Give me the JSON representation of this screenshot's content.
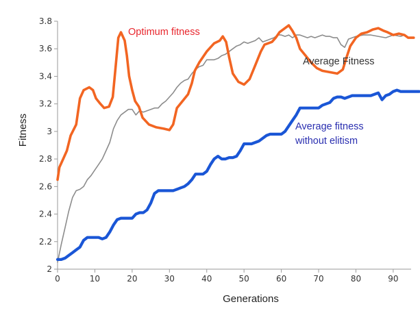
{
  "chart_data": {
    "type": "line",
    "xlabel": "Generations",
    "ylabel": "Fitness",
    "xlim": [
      0,
      97
    ],
    "ylim": [
      2,
      3.8
    ],
    "xticks": [
      0,
      10,
      20,
      30,
      40,
      50,
      60,
      70,
      80,
      90
    ],
    "xtick_labels": [
      "0",
      "10",
      "20",
      "30",
      "40",
      "50",
      "60",
      "70",
      "80",
      "90"
    ],
    "yticks": [
      2,
      2.2,
      2.4,
      2.6,
      2.8,
      3,
      3.2,
      3.4,
      3.6,
      3.8
    ],
    "ytick_labels": [
      "2",
      "2.2",
      "2.4",
      "2.6",
      "2.8",
      "3",
      "3.2",
      "3.4",
      "3.6",
      "3.8"
    ],
    "grid": false,
    "series": [
      {
        "name": "Optimum fitness",
        "color": "#f26522",
        "label_color": "#e8262d",
        "points": [
          [
            0,
            2.65
          ],
          [
            0.5,
            2.74
          ],
          [
            1.5,
            2.8
          ],
          [
            2.5,
            2.86
          ],
          [
            3.5,
            2.97
          ],
          [
            5,
            3.05
          ],
          [
            6,
            3.24
          ],
          [
            7,
            3.3
          ],
          [
            8.5,
            3.32
          ],
          [
            9.5,
            3.3
          ],
          [
            10.3,
            3.24
          ],
          [
            11.5,
            3.2
          ],
          [
            12.5,
            3.17
          ],
          [
            13.8,
            3.18
          ],
          [
            14.8,
            3.25
          ],
          [
            15.5,
            3.45
          ],
          [
            16.3,
            3.68
          ],
          [
            17,
            3.72
          ],
          [
            18,
            3.66
          ],
          [
            18.6,
            3.55
          ],
          [
            19.2,
            3.4
          ],
          [
            20,
            3.3
          ],
          [
            20.8,
            3.22
          ],
          [
            21.8,
            3.18
          ],
          [
            22.8,
            3.1
          ],
          [
            24.5,
            3.05
          ],
          [
            26.5,
            3.03
          ],
          [
            28.5,
            3.02
          ],
          [
            30,
            3.01
          ],
          [
            31,
            3.05
          ],
          [
            32,
            3.17
          ],
          [
            33.5,
            3.22
          ],
          [
            35,
            3.27
          ],
          [
            36,
            3.35
          ],
          [
            36.8,
            3.44
          ],
          [
            38,
            3.5
          ],
          [
            40,
            3.58
          ],
          [
            42,
            3.64
          ],
          [
            43.5,
            3.66
          ],
          [
            44.3,
            3.69
          ],
          [
            45.2,
            3.65
          ],
          [
            46,
            3.54
          ],
          [
            47,
            3.42
          ],
          [
            48.5,
            3.36
          ],
          [
            50,
            3.34
          ],
          [
            51.5,
            3.38
          ],
          [
            53,
            3.48
          ],
          [
            54.5,
            3.58
          ],
          [
            55.5,
            3.63
          ],
          [
            56.5,
            3.64
          ],
          [
            57.5,
            3.65
          ],
          [
            58.5,
            3.68
          ],
          [
            59.5,
            3.72
          ],
          [
            61,
            3.75
          ],
          [
            62,
            3.77
          ],
          [
            63,
            3.73
          ],
          [
            64,
            3.68
          ],
          [
            65,
            3.6
          ],
          [
            66.5,
            3.55
          ],
          [
            68,
            3.5
          ],
          [
            69.5,
            3.46
          ],
          [
            71,
            3.44
          ],
          [
            73,
            3.43
          ],
          [
            75,
            3.42
          ],
          [
            76.5,
            3.45
          ],
          [
            77.5,
            3.54
          ],
          [
            78.5,
            3.62
          ],
          [
            80,
            3.68
          ],
          [
            81.5,
            3.71
          ],
          [
            83,
            3.72
          ],
          [
            84.5,
            3.74
          ],
          [
            86,
            3.75
          ],
          [
            87.5,
            3.73
          ],
          [
            88.5,
            3.72
          ],
          [
            90,
            3.7
          ],
          [
            91.5,
            3.71
          ],
          [
            93,
            3.7
          ],
          [
            94,
            3.68
          ],
          [
            95.5,
            3.68
          ]
        ]
      },
      {
        "name": "Average Fitness",
        "color": "#8c8c8c",
        "label_color": "#333333",
        "points": [
          [
            0,
            2.05
          ],
          [
            1,
            2.18
          ],
          [
            2,
            2.3
          ],
          [
            3,
            2.42
          ],
          [
            4,
            2.52
          ],
          [
            5,
            2.57
          ],
          [
            6,
            2.58
          ],
          [
            7,
            2.6
          ],
          [
            8,
            2.65
          ],
          [
            9,
            2.68
          ],
          [
            10,
            2.72
          ],
          [
            11,
            2.76
          ],
          [
            12,
            2.8
          ],
          [
            13,
            2.86
          ],
          [
            14,
            2.92
          ],
          [
            15,
            3.02
          ],
          [
            16,
            3.08
          ],
          [
            17,
            3.12
          ],
          [
            18,
            3.14
          ],
          [
            19,
            3.16
          ],
          [
            20,
            3.16
          ],
          [
            21,
            3.12
          ],
          [
            22,
            3.15
          ],
          [
            23,
            3.14
          ],
          [
            24,
            3.15
          ],
          [
            25,
            3.16
          ],
          [
            26,
            3.17
          ],
          [
            27,
            3.17
          ],
          [
            28,
            3.2
          ],
          [
            29,
            3.22
          ],
          [
            30,
            3.25
          ],
          [
            31,
            3.28
          ],
          [
            32,
            3.32
          ],
          [
            33,
            3.35
          ],
          [
            34,
            3.37
          ],
          [
            35,
            3.38
          ],
          [
            36,
            3.42
          ],
          [
            37,
            3.45
          ],
          [
            38,
            3.47
          ],
          [
            39,
            3.48
          ],
          [
            40,
            3.52
          ],
          [
            42,
            3.52
          ],
          [
            43,
            3.53
          ],
          [
            44,
            3.55
          ],
          [
            45,
            3.56
          ],
          [
            46,
            3.58
          ],
          [
            47,
            3.6
          ],
          [
            48,
            3.62
          ],
          [
            49,
            3.63
          ],
          [
            50,
            3.65
          ],
          [
            51,
            3.64
          ],
          [
            52,
            3.65
          ],
          [
            53,
            3.66
          ],
          [
            54,
            3.68
          ],
          [
            55,
            3.65
          ],
          [
            56,
            3.66
          ],
          [
            57,
            3.67
          ],
          [
            58,
            3.68
          ],
          [
            59,
            3.7
          ],
          [
            60,
            3.7
          ],
          [
            61,
            3.69
          ],
          [
            62,
            3.7
          ],
          [
            63,
            3.68
          ],
          [
            64,
            3.7
          ],
          [
            65,
            3.7
          ],
          [
            66,
            3.69
          ],
          [
            67,
            3.68
          ],
          [
            68,
            3.69
          ],
          [
            69,
            3.68
          ],
          [
            70,
            3.69
          ],
          [
            71,
            3.7
          ],
          [
            72,
            3.69
          ],
          [
            73,
            3.69
          ],
          [
            74,
            3.68
          ],
          [
            75,
            3.68
          ],
          [
            76,
            3.63
          ],
          [
            77,
            3.61
          ],
          [
            78,
            3.67
          ],
          [
            79,
            3.68
          ],
          [
            80,
            3.69
          ],
          [
            82,
            3.7
          ],
          [
            84,
            3.7
          ],
          [
            86,
            3.69
          ],
          [
            88,
            3.68
          ],
          [
            90,
            3.7
          ],
          [
            92,
            3.69
          ],
          [
            93,
            3.7
          ]
        ]
      },
      {
        "name": "Average fitness without elitism",
        "color": "#1a56d6",
        "label_color": "#2a2fb0",
        "points": [
          [
            0,
            2.07
          ],
          [
            1,
            2.07
          ],
          [
            2,
            2.08
          ],
          [
            3,
            2.1
          ],
          [
            4,
            2.12
          ],
          [
            5,
            2.14
          ],
          [
            6,
            2.16
          ],
          [
            7,
            2.21
          ],
          [
            8,
            2.23
          ],
          [
            9,
            2.23
          ],
          [
            10,
            2.23
          ],
          [
            11,
            2.23
          ],
          [
            12,
            2.22
          ],
          [
            13,
            2.23
          ],
          [
            14,
            2.27
          ],
          [
            15,
            2.32
          ],
          [
            16,
            2.36
          ],
          [
            17,
            2.37
          ],
          [
            18,
            2.37
          ],
          [
            19,
            2.37
          ],
          [
            20,
            2.37
          ],
          [
            21,
            2.4
          ],
          [
            22,
            2.41
          ],
          [
            23,
            2.41
          ],
          [
            24,
            2.43
          ],
          [
            25,
            2.48
          ],
          [
            26,
            2.55
          ],
          [
            27,
            2.57
          ],
          [
            28,
            2.57
          ],
          [
            29,
            2.57
          ],
          [
            30,
            2.57
          ],
          [
            31,
            2.57
          ],
          [
            32,
            2.58
          ],
          [
            33,
            2.59
          ],
          [
            34,
            2.6
          ],
          [
            35,
            2.62
          ],
          [
            36,
            2.65
          ],
          [
            37,
            2.69
          ],
          [
            38,
            2.69
          ],
          [
            39,
            2.69
          ],
          [
            40,
            2.71
          ],
          [
            41,
            2.76
          ],
          [
            42,
            2.8
          ],
          [
            43,
            2.82
          ],
          [
            44,
            2.8
          ],
          [
            45,
            2.8
          ],
          [
            46,
            2.81
          ],
          [
            47,
            2.81
          ],
          [
            48,
            2.82
          ],
          [
            49,
            2.86
          ],
          [
            50,
            2.91
          ],
          [
            51,
            2.91
          ],
          [
            52,
            2.91
          ],
          [
            53,
            2.92
          ],
          [
            54,
            2.93
          ],
          [
            55,
            2.95
          ],
          [
            56,
            2.97
          ],
          [
            57,
            2.98
          ],
          [
            58,
            2.98
          ],
          [
            59,
            2.98
          ],
          [
            60,
            2.98
          ],
          [
            61,
            3.0
          ],
          [
            62,
            3.04
          ],
          [
            63,
            3.08
          ],
          [
            64,
            3.12
          ],
          [
            65,
            3.17
          ],
          [
            66,
            3.17
          ],
          [
            67,
            3.17
          ],
          [
            68,
            3.17
          ],
          [
            69,
            3.17
          ],
          [
            70,
            3.17
          ],
          [
            71,
            3.19
          ],
          [
            72,
            3.2
          ],
          [
            73,
            3.21
          ],
          [
            74,
            3.24
          ],
          [
            75,
            3.25
          ],
          [
            76,
            3.25
          ],
          [
            77,
            3.24
          ],
          [
            78,
            3.25
          ],
          [
            79,
            3.26
          ],
          [
            80,
            3.26
          ],
          [
            81,
            3.26
          ],
          [
            82,
            3.26
          ],
          [
            83,
            3.26
          ],
          [
            84,
            3.26
          ],
          [
            85,
            3.27
          ],
          [
            86,
            3.28
          ],
          [
            87,
            3.23
          ],
          [
            88,
            3.26
          ],
          [
            89,
            3.27
          ],
          [
            90,
            3.29
          ],
          [
            91,
            3.3
          ],
          [
            92,
            3.29
          ],
          [
            93,
            3.29
          ],
          [
            94,
            3.29
          ],
          [
            95,
            3.29
          ],
          [
            97,
            3.29
          ]
        ]
      }
    ],
    "annotations": [
      {
        "text": "Optimum fitness",
        "series": 0
      },
      {
        "text": "Average Fitness",
        "series": 1
      },
      {
        "text": "Average fitness",
        "series": 2
      },
      {
        "text": "without elitism",
        "series": 2
      }
    ]
  }
}
